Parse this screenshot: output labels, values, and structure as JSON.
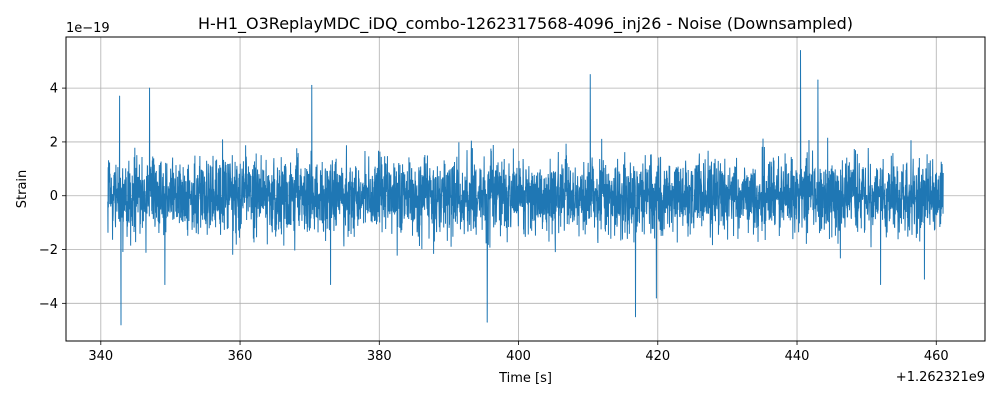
{
  "chart_data": {
    "type": "line",
    "title": "H-H1_O3ReplayMDC_iDQ_combo-1262317568-4096_inj26 - Noise (Downsampled)",
    "xlabel": "Time [s]",
    "ylabel": "Strain",
    "x_offset_label": "+1.262321e9",
    "y_scale_label": "1e−19",
    "xlim": [
      335,
      467
    ],
    "ylim": [
      -5.4,
      5.9
    ],
    "x_ticks": [
      340,
      360,
      380,
      400,
      420,
      440,
      460
    ],
    "x_tick_labels": [
      "340",
      "360",
      "380",
      "400",
      "420",
      "440",
      "460"
    ],
    "y_ticks": [
      -4,
      -2,
      0,
      2,
      4
    ],
    "y_tick_labels": [
      "−4",
      "−2",
      "0",
      "2",
      "4"
    ],
    "grid": true,
    "line_color": "#1f77b4",
    "series": [
      {
        "x_range": [
          341.0,
          461.0
        ],
        "envelope_typical": [
          -1.6,
          1.6
        ],
        "peaks": [
          {
            "x": 342.7,
            "y": 3.7
          },
          {
            "x": 342.9,
            "y": -4.8
          },
          {
            "x": 347.0,
            "y": 4.0
          },
          {
            "x": 349.2,
            "y": -3.3
          },
          {
            "x": 370.3,
            "y": 4.1
          },
          {
            "x": 373.0,
            "y": -3.3
          },
          {
            "x": 395.5,
            "y": -4.7
          },
          {
            "x": 410.3,
            "y": 4.5
          },
          {
            "x": 416.8,
            "y": -4.5
          },
          {
            "x": 419.8,
            "y": -3.8
          },
          {
            "x": 440.5,
            "y": 5.4
          },
          {
            "x": 443.0,
            "y": 4.3
          },
          {
            "x": 452.0,
            "y": -3.3
          },
          {
            "x": 458.3,
            "y": -3.1
          }
        ]
      }
    ]
  }
}
